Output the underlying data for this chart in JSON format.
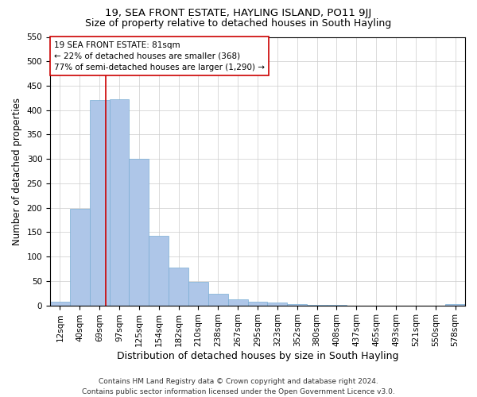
{
  "title": "19, SEA FRONT ESTATE, HAYLING ISLAND, PO11 9JJ",
  "subtitle": "Size of property relative to detached houses in South Hayling",
  "xlabel": "Distribution of detached houses by size in South Hayling",
  "ylabel": "Number of detached properties",
  "categories": [
    "12sqm",
    "40sqm",
    "69sqm",
    "97sqm",
    "125sqm",
    "154sqm",
    "182sqm",
    "210sqm",
    "238sqm",
    "267sqm",
    "295sqm",
    "323sqm",
    "352sqm",
    "380sqm",
    "408sqm",
    "437sqm",
    "465sqm",
    "493sqm",
    "521sqm",
    "550sqm",
    "578sqm"
  ],
  "values": [
    8,
    198,
    420,
    422,
    300,
    142,
    77,
    48,
    23,
    12,
    8,
    6,
    2,
    1,
    1,
    0,
    0,
    0,
    0,
    0,
    3
  ],
  "bar_color": "#aec6e8",
  "bar_edge_color": "#7aadd4",
  "property_line_x": 2.33,
  "property_line_color": "#cc0000",
  "annotation_line1": "19 SEA FRONT ESTATE: 81sqm",
  "annotation_line2": "← 22% of detached houses are smaller (368)",
  "annotation_line3": "77% of semi-detached houses are larger (1,290) →",
  "annotation_box_color": "#ffffff",
  "annotation_box_edge_color": "#cc0000",
  "ylim": [
    0,
    550
  ],
  "yticks": [
    0,
    50,
    100,
    150,
    200,
    250,
    300,
    350,
    400,
    450,
    500,
    550
  ],
  "background_color": "#ffffff",
  "grid_color": "#cccccc",
  "footer_line1": "Contains HM Land Registry data © Crown copyright and database right 2024.",
  "footer_line2": "Contains public sector information licensed under the Open Government Licence v3.0.",
  "title_fontsize": 9.5,
  "subtitle_fontsize": 9,
  "xlabel_fontsize": 9,
  "ylabel_fontsize": 8.5,
  "tick_fontsize": 7.5,
  "annotation_fontsize": 7.5,
  "footer_fontsize": 6.5
}
